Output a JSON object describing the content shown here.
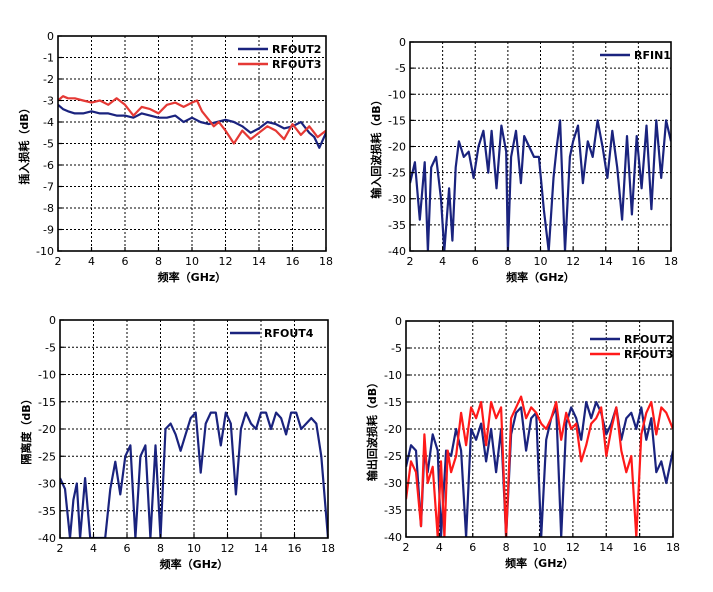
{
  "colors": {
    "navy": "#1a237e",
    "red": "#e53935",
    "red_bright": "#ff1a1a"
  },
  "chart_data": [
    {
      "type": "line",
      "xlabel": "频率（GHz）",
      "ylabel": "插入损耗（dB）",
      "xlim": [
        2,
        18
      ],
      "ylim": [
        -10,
        0
      ],
      "xticks": [
        2,
        4,
        6,
        8,
        10,
        12,
        14,
        16,
        18
      ],
      "yticks": [
        0,
        -1,
        -2,
        -3,
        -4,
        -5,
        -6,
        -7,
        -8,
        -9,
        -10
      ],
      "grid": true,
      "legend_position": "top-right",
      "series": [
        {
          "name": "RFOUT2",
          "color": "#1a237e",
          "x": [
            2,
            2.3,
            2.6,
            3,
            3.5,
            4,
            4.5,
            5,
            5.5,
            6,
            6.5,
            7,
            7.5,
            8,
            8.5,
            9,
            9.5,
            10,
            10.5,
            11,
            11.5,
            12,
            12.5,
            13,
            13.5,
            14,
            14.5,
            15,
            15.5,
            16,
            16.5,
            17,
            17.3,
            17.6,
            18
          ],
          "y": [
            -3.2,
            -3.4,
            -3.5,
            -3.6,
            -3.6,
            -3.5,
            -3.6,
            -3.6,
            -3.7,
            -3.7,
            -3.8,
            -3.6,
            -3.7,
            -3.8,
            -3.8,
            -3.7,
            -4.0,
            -3.8,
            -4.0,
            -4.1,
            -4.0,
            -3.9,
            -4.0,
            -4.2,
            -4.5,
            -4.3,
            -4.0,
            -4.1,
            -4.3,
            -4.2,
            -4.0,
            -4.5,
            -4.7,
            -5.2,
            -4.5
          ]
        },
        {
          "name": "RFOUT3",
          "color": "#e53935",
          "x": [
            2,
            2.3,
            2.6,
            3,
            3.5,
            4,
            4.5,
            5,
            5.5,
            6,
            6.5,
            7,
            7.5,
            8,
            8.5,
            9,
            9.5,
            10,
            10.3,
            10.6,
            11,
            11.3,
            11.6,
            12,
            12.5,
            13,
            13.5,
            14,
            14.5,
            15,
            15.5,
            16,
            16.5,
            17,
            17.5,
            18
          ],
          "y": [
            -3.0,
            -2.8,
            -2.9,
            -2.9,
            -3.0,
            -3.1,
            -3.0,
            -3.2,
            -2.9,
            -3.2,
            -3.7,
            -3.3,
            -3.4,
            -3.6,
            -3.2,
            -3.1,
            -3.3,
            -3.1,
            -3.0,
            -3.5,
            -3.9,
            -4.2,
            -4.0,
            -4.4,
            -5.0,
            -4.4,
            -4.8,
            -4.5,
            -4.2,
            -4.4,
            -4.8,
            -4.1,
            -4.6,
            -4.2,
            -4.7,
            -4.4
          ]
        }
      ]
    },
    {
      "type": "line",
      "xlabel": "频率（GHz）",
      "ylabel": "输入回波损耗（dB）",
      "xlim": [
        2,
        18
      ],
      "ylim": [
        -40,
        0
      ],
      "xticks": [
        2,
        4,
        6,
        8,
        10,
        12,
        14,
        16,
        18
      ],
      "yticks": [
        0,
        -5,
        -10,
        -15,
        -20,
        -25,
        -30,
        -35,
        -40
      ],
      "grid": true,
      "legend_position": "top-right",
      "series": [
        {
          "name": "RFIN1",
          "color": "#1a237e",
          "x": [
            2,
            2.3,
            2.6,
            2.9,
            3.1,
            3.3,
            3.6,
            3.9,
            4.1,
            4.4,
            4.6,
            4.8,
            5.0,
            5.3,
            5.6,
            5.9,
            6.2,
            6.5,
            6.8,
            7.0,
            7.3,
            7.6,
            7.9,
            8.0,
            8.2,
            8.5,
            8.8,
            9.0,
            9.3,
            9.6,
            9.9,
            10.2,
            10.5,
            10.8,
            11.0,
            11.2,
            11.5,
            11.8,
            12.0,
            12.3,
            12.6,
            12.9,
            13.2,
            13.5,
            13.8,
            14.1,
            14.4,
            14.7,
            15.0,
            15.3,
            15.6,
            15.9,
            16.2,
            16.5,
            16.8,
            17.1,
            17.4,
            17.7,
            18
          ],
          "y": [
            -27,
            -23,
            -34,
            -23,
            -40,
            -24,
            -22,
            -30,
            -40,
            -28,
            -38,
            -24,
            -19,
            -22,
            -21,
            -26,
            -20,
            -17,
            -25,
            -17,
            -28,
            -16,
            -21,
            -40,
            -22,
            -17,
            -27,
            -18,
            -20,
            -22,
            -22,
            -32,
            -40,
            -26,
            -20,
            -15,
            -40,
            -22,
            -19,
            -16,
            -27,
            -19,
            -22,
            -15,
            -20,
            -26,
            -17,
            -24,
            -34,
            -18,
            -33,
            -18,
            -28,
            -16,
            -32,
            -15,
            -26,
            -15,
            -19
          ]
        }
      ]
    },
    {
      "type": "line",
      "xlabel": "频率（GHz）",
      "ylabel": "隔离度（dB）",
      "xlim": [
        2,
        18
      ],
      "ylim": [
        -40,
        0
      ],
      "xticks": [
        2,
        4,
        6,
        8,
        10,
        12,
        14,
        16,
        18
      ],
      "yticks": [
        0,
        -5,
        -10,
        -15,
        -20,
        -25,
        -30,
        -35,
        -40
      ],
      "grid": true,
      "legend_position": "top-right",
      "series": [
        {
          "name": "RFOUT4",
          "color": "#1a237e",
          "x": [
            2,
            2.3,
            2.6,
            2.8,
            3.0,
            3.2,
            3.5,
            3.8,
            4.1,
            4.4,
            4.7,
            5.0,
            5.3,
            5.6,
            5.9,
            6.2,
            6.5,
            6.8,
            7.1,
            7.4,
            7.7,
            8.0,
            8.3,
            8.6,
            8.9,
            9.2,
            9.5,
            9.8,
            10.1,
            10.4,
            10.7,
            11.0,
            11.3,
            11.6,
            11.9,
            12.2,
            12.5,
            12.8,
            13.1,
            13.4,
            13.7,
            14.0,
            14.3,
            14.6,
            14.9,
            15.2,
            15.5,
            15.8,
            16.1,
            16.4,
            16.7,
            17.0,
            17.3,
            17.6,
            18
          ],
          "y": [
            -29,
            -31,
            -40,
            -33,
            -30,
            -40,
            -29,
            -40,
            -40,
            -40,
            -40,
            -31,
            -26,
            -32,
            -25,
            -23,
            -40,
            -25,
            -23,
            -40,
            -23,
            -40,
            -20,
            -19,
            -21,
            -24,
            -21,
            -18,
            -17,
            -28,
            -19,
            -17,
            -17,
            -23,
            -17,
            -19,
            -32,
            -20,
            -17,
            -19,
            -20,
            -17,
            -17,
            -20,
            -17,
            -18,
            -21,
            -17,
            -17,
            -20,
            -19,
            -18,
            -19,
            -25,
            -40
          ]
        }
      ]
    },
    {
      "type": "line",
      "xlabel": "频率（GHz）",
      "ylabel": "输出回波损耗（dB）",
      "xlim": [
        2,
        18
      ],
      "ylim": [
        -40,
        0
      ],
      "xticks": [
        2,
        4,
        6,
        8,
        10,
        12,
        14,
        16,
        18
      ],
      "yticks": [
        0,
        -5,
        -10,
        -15,
        -20,
        -25,
        -30,
        -35,
        -40
      ],
      "grid": true,
      "legend_position": "top-right",
      "series": [
        {
          "name": "RFOUT2",
          "color": "#1a237e",
          "x": [
            2,
            2.3,
            2.6,
            2.9,
            3.1,
            3.3,
            3.6,
            3.9,
            4.1,
            4.4,
            4.7,
            5.0,
            5.3,
            5.6,
            5.9,
            6.2,
            6.5,
            6.8,
            7.1,
            7.4,
            7.7,
            8.0,
            8.3,
            8.6,
            8.9,
            9.2,
            9.5,
            9.8,
            10.1,
            10.4,
            10.7,
            11.0,
            11.3,
            11.6,
            11.9,
            12.2,
            12.5,
            12.8,
            13.1,
            13.4,
            13.7,
            14.0,
            14.3,
            14.6,
            14.9,
            15.2,
            15.5,
            15.8,
            16.1,
            16.4,
            16.7,
            17.0,
            17.3,
            17.6,
            18
          ],
          "y": [
            -27,
            -23,
            -24,
            -38,
            -24,
            -28,
            -21,
            -24,
            -40,
            -24,
            -25,
            -20,
            -24,
            -40,
            -20,
            -22,
            -19,
            -26,
            -20,
            -28,
            -20,
            -40,
            -21,
            -17,
            -16,
            -24,
            -18,
            -17,
            -40,
            -22,
            -18,
            -16,
            -40,
            -19,
            -16,
            -18,
            -22,
            -15,
            -18,
            -15,
            -17,
            -21,
            -19,
            -16,
            -22,
            -18,
            -17,
            -20,
            -16,
            -22,
            -18,
            -28,
            -26,
            -30,
            -24
          ]
        },
        {
          "name": "RFOUT3",
          "color": "#ff1a1a",
          "x": [
            2,
            2.3,
            2.6,
            2.9,
            3.1,
            3.3,
            3.6,
            3.9,
            4.1,
            4.3,
            4.5,
            4.7,
            5.0,
            5.3,
            5.6,
            5.9,
            6.2,
            6.5,
            6.8,
            7.1,
            7.4,
            7.7,
            8.0,
            8.3,
            8.6,
            8.9,
            9.2,
            9.5,
            9.8,
            10.1,
            10.4,
            10.7,
            11.0,
            11.3,
            11.6,
            11.9,
            12.2,
            12.5,
            12.8,
            13.1,
            13.4,
            13.7,
            14.0,
            14.3,
            14.6,
            14.9,
            15.2,
            15.5,
            15.8,
            16.1,
            16.4,
            16.7,
            17.0,
            17.3,
            17.6,
            18
          ],
          "y": [
            -33,
            -26,
            -28,
            -38,
            -21,
            -30,
            -27,
            -40,
            -26,
            -40,
            -24,
            -28,
            -25,
            -17,
            -23,
            -16,
            -18,
            -15,
            -23,
            -15,
            -18,
            -16,
            -40,
            -18,
            -16,
            -14,
            -18,
            -16,
            -17,
            -19,
            -20,
            -18,
            -15,
            -22,
            -17,
            -20,
            -19,
            -26,
            -23,
            -19,
            -18,
            -16,
            -25,
            -20,
            -16,
            -24,
            -28,
            -25,
            -40,
            -21,
            -17,
            -15,
            -21,
            -16,
            -17,
            -20
          ]
        }
      ]
    }
  ]
}
